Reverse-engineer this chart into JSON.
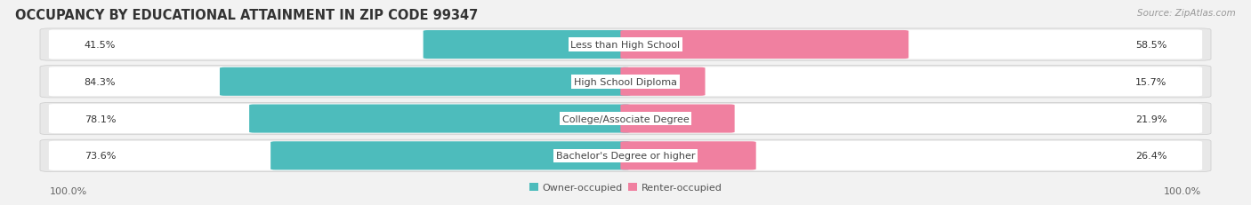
{
  "title": "OCCUPANCY BY EDUCATIONAL ATTAINMENT IN ZIP CODE 99347",
  "source": "Source: ZipAtlas.com",
  "categories": [
    "Less than High School",
    "High School Diploma",
    "College/Associate Degree",
    "Bachelor's Degree or higher"
  ],
  "owner_pct": [
    41.5,
    84.3,
    78.1,
    73.6
  ],
  "renter_pct": [
    58.5,
    15.7,
    21.9,
    26.4
  ],
  "owner_color": "#4dbcbc",
  "renter_color": "#f080a0",
  "bg_color": "#f2f2f2",
  "title_fontsize": 10.5,
  "source_fontsize": 7.5,
  "label_fontsize": 8,
  "pct_fontsize": 8,
  "legend_fontsize": 8,
  "axis_left": "100.0%",
  "axis_right": "100.0%"
}
